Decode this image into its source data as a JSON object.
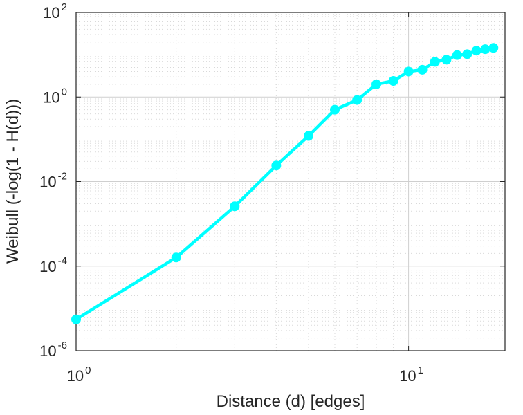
{
  "chart_data": {
    "type": "line",
    "xlabel": "Distance (d) [edges]",
    "ylabel": "Weibull (-log(1 - H(d)))",
    "xscale": "log",
    "yscale": "log",
    "xlim": [
      1,
      19.5
    ],
    "ylim": [
      1e-06,
      100
    ],
    "grid": true,
    "minor_grid": true,
    "line_color": "#00FFFF",
    "marker": "circle",
    "x_ticks": [
      {
        "value": 1,
        "base": "10",
        "exp": "0"
      },
      {
        "value": 10,
        "base": "10",
        "exp": "1"
      }
    ],
    "y_ticks": [
      {
        "value": 1e-06,
        "base": "10",
        "exp": "-6"
      },
      {
        "value": 0.0001,
        "base": "10",
        "exp": "-4"
      },
      {
        "value": 0.01,
        "base": "10",
        "exp": "-2"
      },
      {
        "value": 1,
        "base": "10",
        "exp": "0"
      },
      {
        "value": 100,
        "base": "10",
        "exp": "2"
      }
    ],
    "series": [
      {
        "x": [
          1,
          2,
          3,
          4,
          5,
          6,
          7,
          8,
          9,
          10,
          11,
          12,
          13,
          14,
          15,
          16,
          17,
          18
        ],
        "y": [
          5.5e-06,
          0.00016,
          0.0026,
          0.024,
          0.12,
          0.5,
          0.85,
          2.0,
          2.4,
          4.0,
          4.4,
          6.8,
          7.6,
          9.8,
          10.3,
          12.5,
          13.5,
          14.5
        ]
      }
    ]
  }
}
